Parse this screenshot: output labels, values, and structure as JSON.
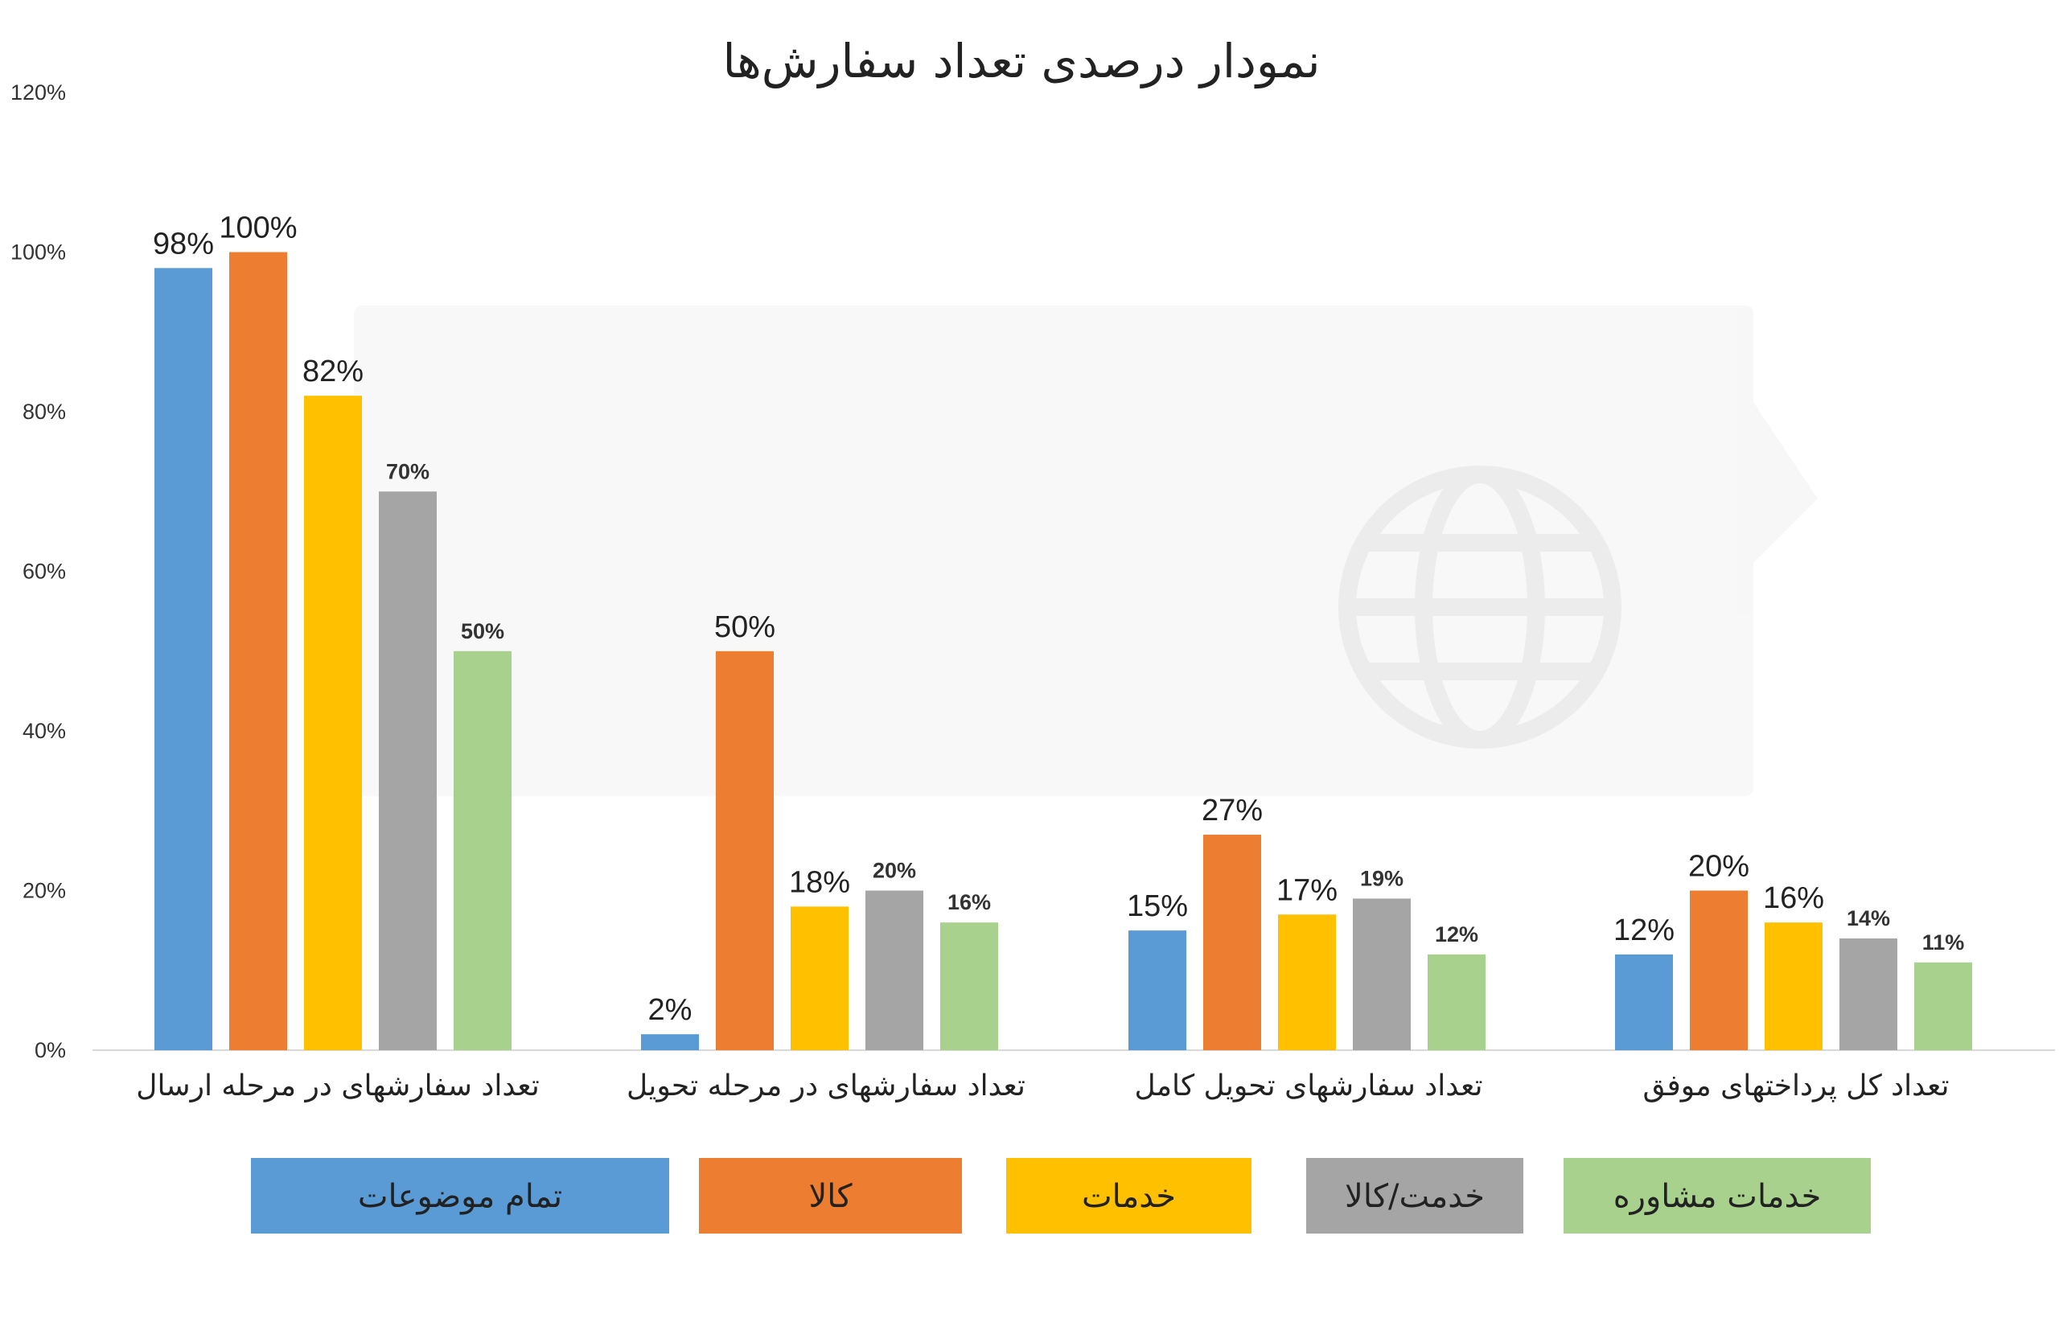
{
  "chart_data": {
    "type": "bar",
    "title": "نمودار درصدی تعداد سفارش‌ها",
    "ylim": [
      0,
      120
    ],
    "yticks": [
      "0%",
      "20%",
      "40%",
      "60%",
      "80%",
      "100%",
      "120%"
    ],
    "grid": false,
    "legend_position": "bottom",
    "categories": [
      "تعداد سفارشهای در مرحله ارسال",
      "تعداد سفارشهای در مرحله تحویل",
      "تعداد سفارشهای تحویل کامل",
      "تعداد کل پرداختهای موفق"
    ],
    "series": [
      {
        "name": "تمام موضوعات",
        "color": "#5B9BD5",
        "values": [
          98,
          2,
          15,
          12
        ],
        "labels": [
          "98%",
          "2%",
          "15%",
          "12%"
        ]
      },
      {
        "name": "کالا",
        "color": "#ED7D31",
        "values": [
          100,
          50,
          27,
          20
        ],
        "labels": [
          "100%",
          "50%",
          "27%",
          "20%"
        ]
      },
      {
        "name": "خدمات",
        "color": "#FFC000",
        "values": [
          82,
          18,
          17,
          16
        ],
        "labels": [
          "82%",
          "18%",
          "17%",
          "16%"
        ]
      },
      {
        "name": "خدمت/کالا",
        "color": "#A5A5A5",
        "values": [
          70,
          20,
          19,
          14
        ],
        "labels": [
          "70%",
          "20%",
          "19%",
          "14%"
        ]
      },
      {
        "name": "خدمات مشاوره",
        "color": "#A9D18E",
        "values": [
          50,
          16,
          12,
          11
        ],
        "labels": [
          "50%",
          "16%",
          "12%",
          "11%"
        ]
      }
    ]
  }
}
